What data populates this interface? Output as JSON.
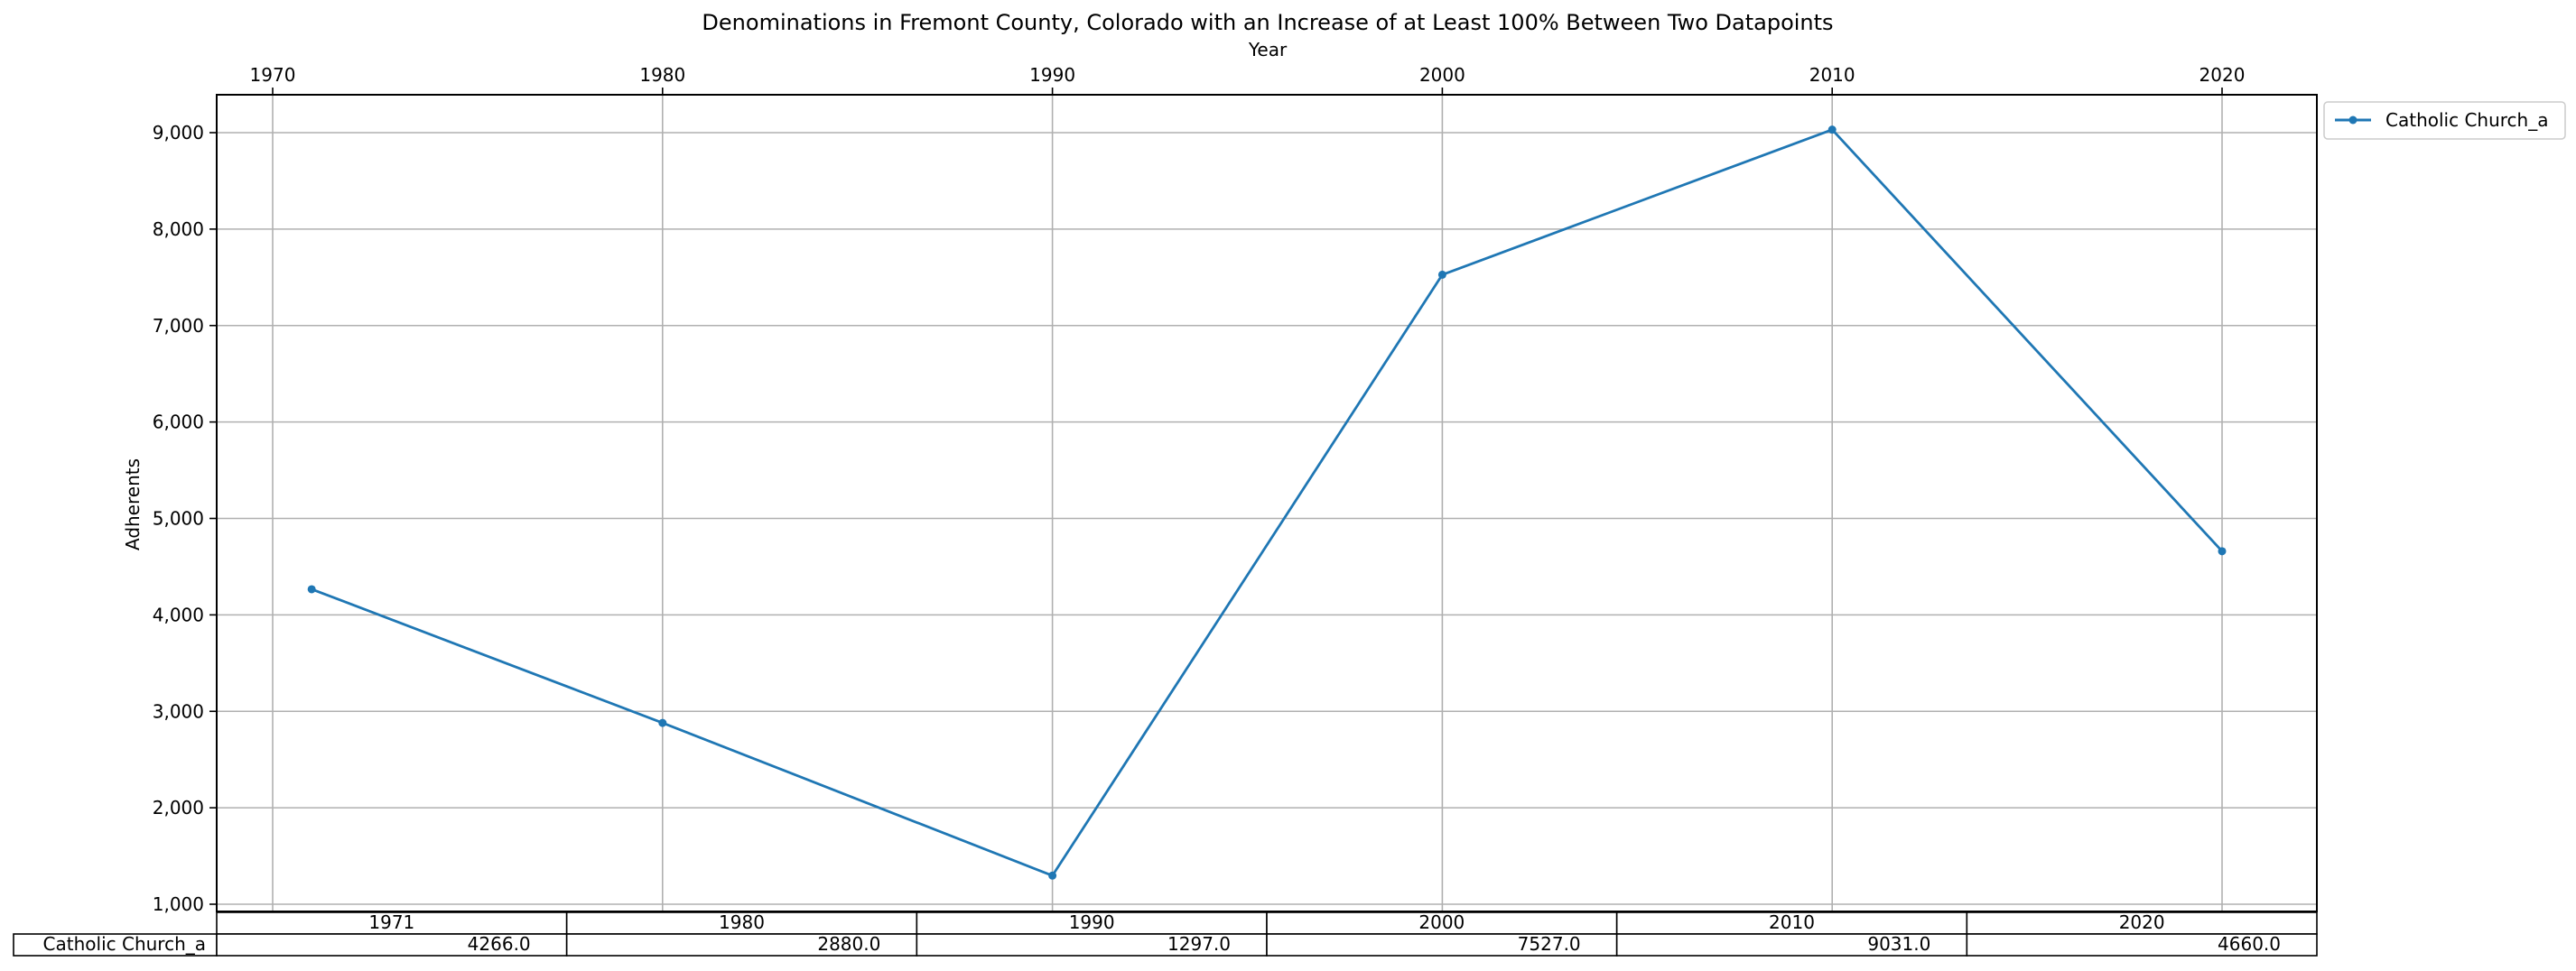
{
  "chart_data": {
    "type": "line",
    "title": "Denominations in Fremont County, Colorado with an Increase of at Least 100% Between Two Datapoints",
    "xlabel": "Year",
    "ylabel": "Adherents",
    "x_axis_position": "top",
    "xlim": [
      1970,
      2020
    ],
    "x_ticks": [
      1970,
      1980,
      1990,
      2000,
      2010,
      2020
    ],
    "x_tick_labels": [
      "1970",
      "1980",
      "1990",
      "2000",
      "2010",
      "2020"
    ],
    "ylim": [
      1000,
      9000
    ],
    "y_ticks": [
      1000,
      2000,
      3000,
      4000,
      5000,
      6000,
      7000,
      8000,
      9000
    ],
    "y_tick_labels": [
      "1,000",
      "2,000",
      "3,000",
      "4,000",
      "5,000",
      "6,000",
      "7,000",
      "8,000",
      "9,000"
    ],
    "grid": true,
    "legend_position": "outside-top-right",
    "x": [
      1971,
      1980,
      1990,
      2000,
      2010,
      2020
    ],
    "series": [
      {
        "name": "Catholic Church_a",
        "color": "#1f77b4",
        "values": [
          4266,
          2880,
          1297,
          7527,
          9031,
          4660
        ]
      }
    ],
    "table": {
      "columns": [
        "1971",
        "1980",
        "1990",
        "2000",
        "2010",
        "2020"
      ],
      "rows": [
        {
          "label": "Catholic Church_a",
          "cells": [
            "4266.0",
            "2880.0",
            "1297.0",
            "7527.0",
            "9031.0",
            "4660.0"
          ]
        }
      ]
    }
  }
}
